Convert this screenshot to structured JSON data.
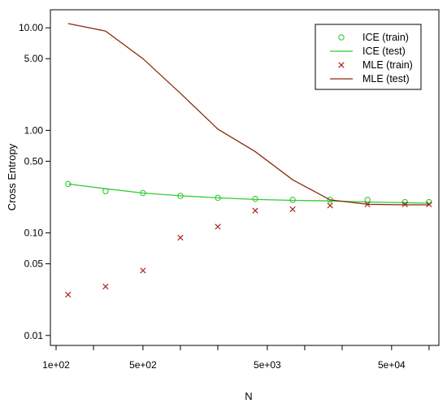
{
  "chart_data": {
    "type": "scatter",
    "xlabel": "N",
    "ylabel": "Cross Entropy",
    "xscale": "log",
    "yscale": "log",
    "xlim": [
      90,
      120000
    ],
    "ylim": [
      0.008,
      15
    ],
    "x_ticks": [
      {
        "value": 100,
        "label": "1e+02"
      },
      {
        "value": 500,
        "label": "5e+02"
      },
      {
        "value": 5000,
        "label": "5e+03"
      },
      {
        "value": 50000,
        "label": "5e+04"
      }
    ],
    "x_minor_ticks": [
      200,
      1000,
      2000,
      10000,
      20000,
      100000
    ],
    "y_ticks": [
      {
        "value": 0.01,
        "label": "0.01"
      },
      {
        "value": 0.05,
        "label": "0.05"
      },
      {
        "value": 0.1,
        "label": "0.10"
      },
      {
        "value": 0.5,
        "label": "0.50"
      },
      {
        "value": 1,
        "label": "1.00"
      },
      {
        "value": 5,
        "label": "5.00"
      },
      {
        "value": 10,
        "label": "10.00"
      }
    ],
    "legend_position": "top-right",
    "series": [
      {
        "name": "ICE (train)",
        "kind": "points",
        "marker": "o",
        "color": "#33cc33",
        "x": [
          125,
          250,
          500,
          1000,
          2000,
          4000,
          8000,
          16000,
          32000,
          64000,
          100000
        ],
        "y": [
          0.3,
          0.255,
          0.245,
          0.23,
          0.22,
          0.215,
          0.21,
          0.21,
          0.21,
          0.2,
          0.2
        ]
      },
      {
        "name": "ICE (test)",
        "kind": "line",
        "color": "#33cc33",
        "x": [
          125,
          250,
          500,
          1000,
          2000,
          4000,
          8000,
          16000,
          32000,
          64000,
          100000
        ],
        "y": [
          0.3,
          0.27,
          0.245,
          0.23,
          0.22,
          0.212,
          0.208,
          0.205,
          0.2,
          0.197,
          0.195
        ]
      },
      {
        "name": "MLE (train)",
        "kind": "points",
        "marker": "x",
        "color": "#aa2222",
        "x": [
          125,
          250,
          500,
          1000,
          2000,
          4000,
          8000,
          16000,
          32000,
          64000,
          100000
        ],
        "y": [
          0.025,
          0.03,
          0.043,
          0.09,
          0.115,
          0.165,
          0.17,
          0.185,
          0.19,
          0.19,
          0.19
        ]
      },
      {
        "name": "MLE (test)",
        "kind": "line",
        "color": "#8b2a10",
        "x": [
          125,
          250,
          500,
          1000,
          2000,
          4000,
          8000,
          16000,
          32000,
          64000,
          100000
        ],
        "y": [
          11,
          9.3,
          5,
          2.3,
          1.03,
          0.62,
          0.33,
          0.21,
          0.19,
          0.188,
          0.188
        ]
      }
    ]
  },
  "legend": {
    "items": [
      "ICE (train)",
      "ICE (test)",
      "MLE (train)",
      "MLE (test)"
    ]
  }
}
